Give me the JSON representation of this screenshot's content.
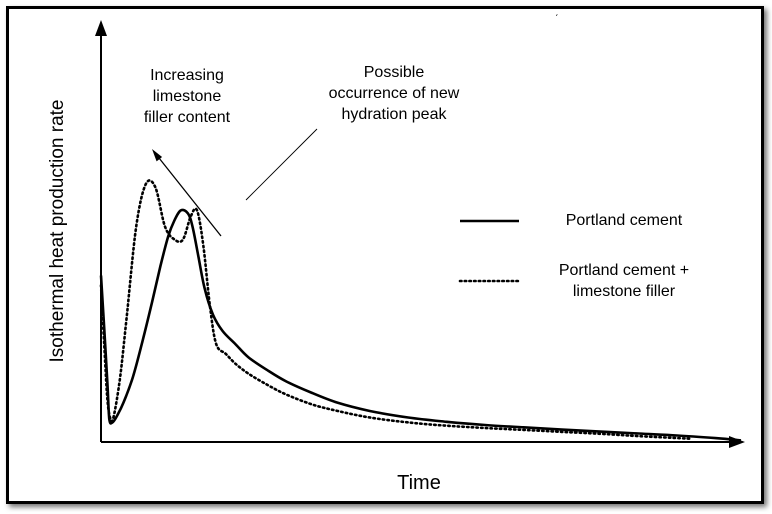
{
  "chart_data": {
    "type": "line",
    "xlabel": "Time",
    "ylabel": "Isothermal heat production rate",
    "axis_ticks": "none",
    "grid": false,
    "legend_position": "right",
    "series": [
      {
        "name": "Portland cement",
        "line_style": "solid",
        "x": [
          0,
          0.5,
          1.0,
          1.3,
          1.8,
          2.5,
          3.5,
          5,
          6.5,
          8.0,
          9.3,
          10.5,
          11.5,
          12.5,
          13.6,
          14.3,
          15.2,
          16.2,
          17.5,
          19,
          21,
          23,
          26,
          29,
          33,
          37,
          42,
          48,
          54,
          60,
          66,
          72,
          78,
          84,
          90,
          96,
          100
        ],
        "y": [
          0.51,
          0.35,
          0.18,
          0.07,
          0.06,
          0.08,
          0.12,
          0.2,
          0.31,
          0.43,
          0.54,
          0.63,
          0.68,
          0.71,
          0.7,
          0.66,
          0.57,
          0.47,
          0.39,
          0.34,
          0.3,
          0.26,
          0.22,
          0.185,
          0.15,
          0.12,
          0.095,
          0.075,
          0.062,
          0.052,
          0.045,
          0.038,
          0.032,
          0.026,
          0.02,
          0.012,
          0.005
        ]
      },
      {
        "name": "Portland cement + limestone filler",
        "line_style": "dotted",
        "x": [
          0,
          0.5,
          1.0,
          1.5,
          2.0,
          3.0,
          4.0,
          5.5,
          7.0,
          8.5,
          10.0,
          11.5,
          12.8,
          14.0,
          15.0,
          16.0,
          17.0,
          18.0,
          19.5,
          21,
          23,
          26,
          29,
          33,
          37,
          42,
          48,
          54,
          60,
          66,
          72,
          78,
          84,
          92
        ],
        "y": [
          0.48,
          0.3,
          0.13,
          0.07,
          0.08,
          0.2,
          0.38,
          0.66,
          0.79,
          0.78,
          0.66,
          0.62,
          0.62,
          0.69,
          0.71,
          0.6,
          0.42,
          0.3,
          0.27,
          0.24,
          0.21,
          0.175,
          0.145,
          0.115,
          0.095,
          0.075,
          0.06,
          0.05,
          0.043,
          0.037,
          0.031,
          0.025,
          0.018,
          0.01
        ]
      }
    ],
    "xlim": [
      0,
      100
    ],
    "ylim": [
      0,
      1.25
    ],
    "annotations": [
      {
        "id": "filler",
        "lines": [
          "Increasing",
          "limestone",
          "filler content"
        ],
        "type": "arrow"
      },
      {
        "id": "peak",
        "lines": [
          "Possible",
          "occurrence of new",
          "hydration peak"
        ],
        "type": "leader-line"
      }
    ],
    "legend_entries": [
      "Portland cement",
      "Portland cement +",
      "limestone filler"
    ]
  }
}
